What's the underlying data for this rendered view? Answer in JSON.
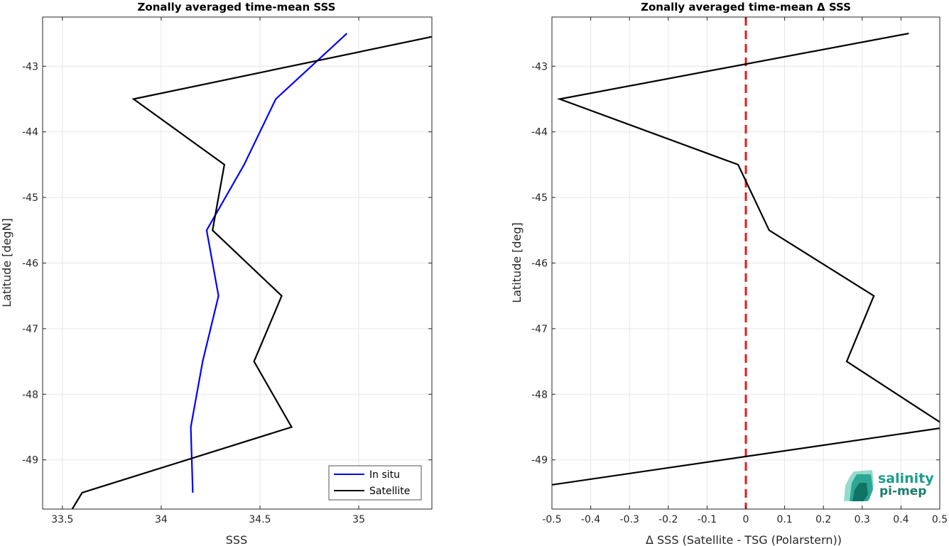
{
  "chart_data": [
    {
      "type": "line",
      "title": "Zonally averaged time-mean SSS",
      "xlabel": "SSS",
      "ylabel": "Latitude [degN]",
      "xlim": [
        33.4,
        35.37
      ],
      "ylim": [
        -49.75,
        -42.25
      ],
      "xticks": [
        "33.5",
        "34",
        "34.5",
        "35"
      ],
      "yticks": [
        "-43",
        "-44",
        "-45",
        "-46",
        "-47",
        "-48",
        "-49"
      ],
      "grid": true,
      "legend_position": "bottom-right",
      "series": [
        {
          "name": "In situ",
          "color": "#0000ff",
          "x": [
            34.94,
            34.58,
            34.42,
            34.23,
            34.29,
            34.21,
            34.15,
            34.16
          ],
          "y": [
            -42.5,
            -43.5,
            -44.5,
            -45.5,
            -46.5,
            -47.5,
            -48.5,
            -49.5
          ]
        },
        {
          "name": "Satellite",
          "color": "#000000",
          "x": [
            35.45,
            33.86,
            34.32,
            34.26,
            34.61,
            34.47,
            34.66,
            33.6,
            33.55
          ],
          "y": [
            -42.5,
            -43.5,
            -44.5,
            -45.5,
            -46.5,
            -47.5,
            -48.5,
            -49.5,
            -49.75
          ]
        }
      ]
    },
    {
      "type": "line",
      "title": "Zonally averaged time-mean Δ SSS",
      "xlabel": "Δ SSS (Satellite - TSG (Polarstern))",
      "ylabel": "Latitude [deg]",
      "xlim": [
        -0.5,
        0.5
      ],
      "ylim": [
        -49.75,
        -42.25
      ],
      "xticks": [
        "-0.5",
        "-0.4",
        "-0.3",
        "-0.2",
        "-0.1",
        "0",
        "0.1",
        "0.2",
        "0.3",
        "0.4",
        "0.5"
      ],
      "yticks": [
        "-43",
        "-44",
        "-45",
        "-46",
        "-47",
        "-48",
        "-49"
      ],
      "grid": true,
      "reference_line": {
        "x": 0,
        "color": "#e41a1c",
        "style": "dashed"
      },
      "series": [
        {
          "color": "#000000",
          "x": [
            0.42,
            -0.48,
            -0.02,
            0.06,
            0.33,
            0.26,
            0.52,
            -0.5
          ],
          "y": [
            -42.5,
            -43.5,
            -44.5,
            -45.5,
            -46.5,
            -47.5,
            -48.5,
            -49.38
          ]
        }
      ]
    }
  ],
  "logo": {
    "line1": "salinity",
    "line2": "pi-mep",
    "color": "#1b9e8a"
  }
}
